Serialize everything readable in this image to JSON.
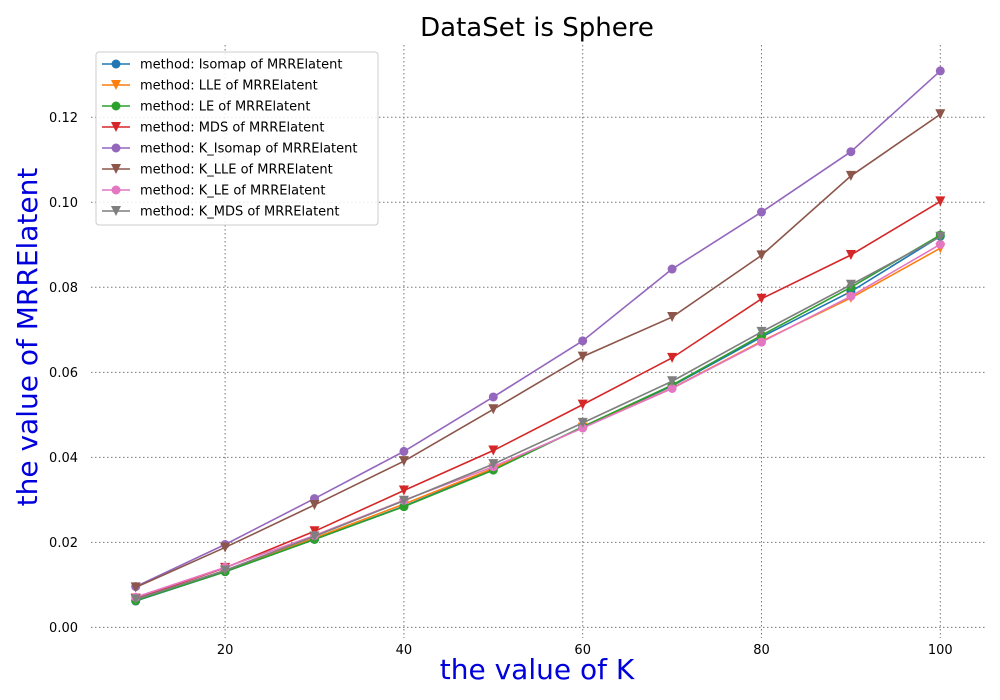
{
  "chart_data": {
    "type": "line",
    "title": "DataSet is Sphere",
    "xlabel": "the value of K",
    "ylabel": "the value of MRRElatent",
    "xlim": [
      5,
      105
    ],
    "ylim": [
      -0.0025,
      0.137
    ],
    "xticks": [
      20,
      40,
      60,
      80,
      100
    ],
    "xtick_labels": [
      "20",
      "40",
      "60",
      "80",
      "100"
    ],
    "yticks": [
      0.0,
      0.02,
      0.04,
      0.06,
      0.08,
      0.1,
      0.12
    ],
    "ytick_labels": [
      "0.00",
      "0.02",
      "0.04",
      "0.06",
      "0.08",
      "0.10",
      "0.12"
    ],
    "grid": true,
    "legend_position": "top-left",
    "x": [
      10,
      20,
      30,
      40,
      50,
      60,
      70,
      80,
      90,
      100
    ],
    "series": [
      {
        "name": "method: Isomap of MRRElatent",
        "color": "#1f77b4",
        "marker": "circle",
        "values": [
          0.0062,
          0.0131,
          0.0207,
          0.0285,
          0.0372,
          0.0471,
          0.0568,
          0.0683,
          0.079,
          0.092
        ]
      },
      {
        "name": "method: LLE of MRRElatent",
        "color": "#ff7f0e",
        "marker": "triangle-down",
        "values": [
          0.0065,
          0.0133,
          0.021,
          0.029,
          0.0374,
          0.047,
          0.0563,
          0.0673,
          0.0775,
          0.0892
        ]
      },
      {
        "name": "method: LE of MRRElatent",
        "color": "#2ca02c",
        "marker": "circle",
        "values": [
          0.0063,
          0.0131,
          0.0207,
          0.0284,
          0.037,
          0.0472,
          0.057,
          0.0687,
          0.08,
          0.0923
        ]
      },
      {
        "name": "method: MDS of MRRElatent",
        "color": "#d62728",
        "marker": "triangle-down",
        "values": [
          0.0068,
          0.014,
          0.0226,
          0.0322,
          0.0416,
          0.0524,
          0.0634,
          0.0773,
          0.0876,
          0.1002
        ]
      },
      {
        "name": "method: K_Isomap of MRRElatent",
        "color": "#9467bd",
        "marker": "circle",
        "values": [
          0.0096,
          0.0195,
          0.0303,
          0.0414,
          0.0542,
          0.0674,
          0.0843,
          0.0977,
          0.1119,
          0.1309
        ]
      },
      {
        "name": "method: K_LLE of MRRElatent",
        "color": "#8c564b",
        "marker": "triangle-down",
        "values": [
          0.0094,
          0.0188,
          0.0288,
          0.0391,
          0.0513,
          0.0637,
          0.073,
          0.0875,
          0.1062,
          0.1207
        ]
      },
      {
        "name": "method: K_LE of MRRElatent",
        "color": "#e377c2",
        "marker": "circle",
        "values": [
          0.0071,
          0.0141,
          0.0216,
          0.0299,
          0.0378,
          0.0469,
          0.0562,
          0.0671,
          0.0779,
          0.0901
        ]
      },
      {
        "name": "method: K_MDS of MRRElatent",
        "color": "#7f7f7f",
        "marker": "triangle-down",
        "values": [
          0.0066,
          0.0134,
          0.0214,
          0.0298,
          0.0384,
          0.0481,
          0.0579,
          0.0695,
          0.0806,
          0.0919
        ]
      }
    ]
  }
}
